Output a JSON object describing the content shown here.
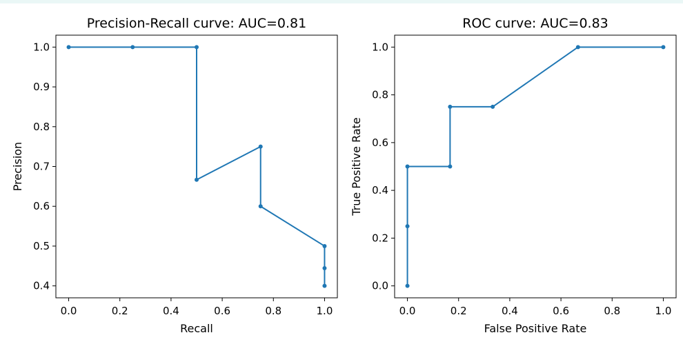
{
  "figure": {
    "background": "#ffffff",
    "top_strip_color": "#eaf7f6"
  },
  "chart_data": [
    {
      "type": "line",
      "title": "Precision-Recall curve: AUC=0.81",
      "xlabel": "Recall",
      "ylabel": "Precision",
      "xlim": [
        -0.05,
        1.05
      ],
      "ylim": [
        0.37,
        1.03
      ],
      "xticks": [
        0.0,
        0.2,
        0.4,
        0.6,
        0.8,
        1.0
      ],
      "xtick_labels": [
        "0.0",
        "0.2",
        "0.4",
        "0.6",
        "0.8",
        "1.0"
      ],
      "yticks": [
        0.4,
        0.5,
        0.6,
        0.7,
        0.8,
        0.9,
        1.0
      ],
      "ytick_labels": [
        "0.4",
        "0.5",
        "0.6",
        "0.7",
        "0.8",
        "0.9",
        "1.0"
      ],
      "grid": false,
      "line_color": "#1f77b4",
      "marker": "circle",
      "series": [
        {
          "x": [
            0.0,
            0.25,
            0.5,
            0.5,
            0.75,
            0.75,
            1.0,
            1.0,
            1.0
          ],
          "y": [
            1.0,
            1.0,
            1.0,
            0.6667,
            0.75,
            0.6,
            0.5,
            0.4444,
            0.4
          ]
        }
      ]
    },
    {
      "type": "line",
      "title": "ROC curve: AUC=0.83",
      "xlabel": "False Positive Rate",
      "ylabel": "True Positive Rate",
      "xlim": [
        -0.05,
        1.05
      ],
      "ylim": [
        -0.05,
        1.05
      ],
      "xticks": [
        0.0,
        0.2,
        0.4,
        0.6,
        0.8,
        1.0
      ],
      "xtick_labels": [
        "0.0",
        "0.2",
        "0.4",
        "0.6",
        "0.8",
        "1.0"
      ],
      "yticks": [
        0.0,
        0.2,
        0.4,
        0.6,
        0.8,
        1.0
      ],
      "ytick_labels": [
        "0.0",
        "0.2",
        "0.4",
        "0.6",
        "0.8",
        "1.0"
      ],
      "grid": false,
      "line_color": "#1f77b4",
      "marker": "circle",
      "series": [
        {
          "x": [
            0.0,
            0.0,
            0.0,
            0.1667,
            0.1667,
            0.3333,
            0.6667,
            1.0
          ],
          "y": [
            0.0,
            0.25,
            0.5,
            0.5,
            0.75,
            0.75,
            1.0,
            1.0
          ]
        }
      ]
    }
  ]
}
